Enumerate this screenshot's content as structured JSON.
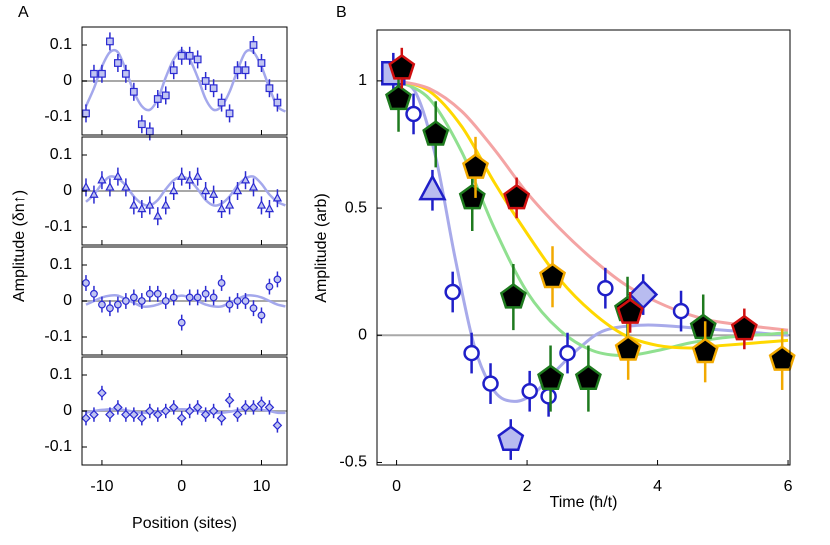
{
  "chart_data": [
    {
      "type": "scatter",
      "panel_label": "A",
      "y_label": "Amplitude (δn↑)",
      "x": [
        -12,
        -11,
        -10,
        -9,
        -8,
        -7,
        -6,
        -5,
        -4,
        -3,
        -2,
        -1,
        0,
        1,
        2,
        3,
        4,
        5,
        6,
        7,
        8,
        9,
        10,
        11,
        12
      ],
      "values": [
        -0.09,
        0.02,
        0.02,
        0.11,
        0.05,
        0.02,
        -0.03,
        -0.12,
        -0.14,
        -0.05,
        -0.04,
        0.03,
        0.07,
        0.07,
        0.06,
        0.0,
        -0.02,
        -0.06,
        -0.09,
        0.03,
        0.03,
        0.1,
        0.05,
        -0.02,
        -0.06
      ],
      "error": 0.025,
      "marker": "square",
      "color": "#2b2bd1",
      "fill": "#c0c4f2",
      "fit_color": "#a4a8ec",
      "fit_x": [
        -12,
        -11,
        -10,
        -9,
        -8,
        -7,
        -6,
        -5,
        -4,
        -3,
        -2,
        -1,
        0,
        1,
        2,
        3,
        4,
        5,
        6,
        7,
        8,
        9,
        10,
        11,
        12,
        13
      ],
      "fit_values": [
        -0.07,
        -0.02,
        0.04,
        0.08,
        0.08,
        0.03,
        -0.03,
        -0.07,
        -0.08,
        -0.05,
        0.01,
        0.06,
        0.085,
        0.06,
        0.01,
        -0.05,
        -0.08,
        -0.07,
        -0.03,
        0.03,
        0.08,
        0.08,
        0.04,
        -0.02,
        -0.07,
        -0.085
      ],
      "xlim": [
        -12.5,
        13.2
      ],
      "ylim": [
        -0.15,
        0.15
      ],
      "yticks": [
        0.1,
        0,
        -0.1
      ],
      "zero_line": true
    },
    {
      "type": "scatter",
      "x": [
        -12,
        -11,
        -10,
        -9,
        -8,
        -7,
        -6,
        -5,
        -4,
        -3,
        -2,
        -1,
        0,
        1,
        2,
        3,
        4,
        5,
        6,
        7,
        8,
        9,
        10,
        11,
        12
      ],
      "values": [
        0.01,
        -0.01,
        0.03,
        0.01,
        0.04,
        0.01,
        -0.04,
        -0.05,
        -0.04,
        -0.07,
        -0.04,
        0.0,
        0.04,
        0.03,
        0.04,
        0.0,
        -0.01,
        -0.05,
        -0.04,
        0.0,
        0.03,
        0.01,
        -0.04,
        -0.05,
        -0.02
      ],
      "error": 0.025,
      "marker": "triangle",
      "color": "#2b2bd1",
      "fill": "#c0c4f2",
      "fit_color": "#a4a8ec",
      "fit_x": [
        -12,
        -11,
        -10,
        -9,
        -8,
        -7,
        -6,
        -5,
        -4,
        -3,
        -2,
        -1,
        0,
        1,
        2,
        3,
        4,
        5,
        6,
        7,
        8,
        9,
        10,
        11,
        12,
        13
      ],
      "fit_values": [
        -0.03,
        -0.01,
        0.02,
        0.04,
        0.035,
        0.015,
        -0.015,
        -0.035,
        -0.04,
        -0.025,
        0.005,
        0.03,
        0.04,
        0.03,
        0.005,
        -0.025,
        -0.04,
        -0.035,
        -0.015,
        0.015,
        0.035,
        0.04,
        0.02,
        -0.01,
        -0.03,
        -0.04
      ],
      "xlim": [
        -12.5,
        13.2
      ],
      "ylim": [
        -0.15,
        0.15
      ],
      "yticks": [
        0.1,
        0,
        -0.1
      ],
      "zero_line": true
    },
    {
      "type": "scatter",
      "x": [
        -12,
        -11,
        -10,
        -9,
        -8,
        -7,
        -6,
        -5,
        -4,
        -3,
        -2,
        -1,
        0,
        1,
        2,
        3,
        4,
        5,
        6,
        7,
        8,
        9,
        10,
        11,
        12
      ],
      "values": [
        0.05,
        0.02,
        -0.01,
        -0.02,
        -0.01,
        0.0,
        0.01,
        0.0,
        0.02,
        0.02,
        0.0,
        0.01,
        -0.06,
        0.01,
        0.01,
        0.02,
        0.01,
        0.05,
        -0.01,
        0.0,
        0.0,
        -0.02,
        -0.04,
        0.04,
        0.06
      ],
      "error": 0.022,
      "marker": "circle",
      "color": "#2b2bd1",
      "fill": "#c0c4f2",
      "fit_color": "#a4a8ec",
      "fit_x": [
        -12,
        -11,
        -10,
        -9,
        -8,
        -7,
        -6,
        -5,
        -4,
        -3,
        -2,
        -1,
        0,
        1,
        2,
        3,
        4,
        5,
        6,
        7,
        8,
        9,
        10,
        11,
        12,
        13
      ],
      "fit_values": [
        -0.01,
        0,
        0.01,
        0.015,
        0.015,
        0.005,
        -0.005,
        -0.015,
        -0.015,
        -0.01,
        0,
        0.01,
        0.015,
        0.01,
        0,
        -0.01,
        -0.015,
        -0.015,
        -0.005,
        0.005,
        0.015,
        0.015,
        0.01,
        0,
        -0.01,
        -0.015
      ],
      "xlim": [
        -12.5,
        13.2
      ],
      "ylim": [
        -0.15,
        0.15
      ],
      "yticks": [
        0.1,
        0,
        -0.1
      ],
      "zero_line": true
    },
    {
      "type": "scatter",
      "x_label": "Position (sites)",
      "x": [
        -12,
        -11,
        -10,
        -9,
        -8,
        -7,
        -6,
        -5,
        -4,
        -3,
        -2,
        -1,
        0,
        1,
        2,
        3,
        4,
        5,
        6,
        7,
        8,
        9,
        10,
        11,
        12
      ],
      "values": [
        -0.02,
        -0.01,
        0.05,
        -0.01,
        0.01,
        -0.01,
        -0.01,
        -0.02,
        0.0,
        -0.01,
        0.0,
        0.01,
        -0.02,
        0.0,
        0.01,
        -0.01,
        0.0,
        -0.02,
        0.03,
        -0.01,
        0.01,
        0.01,
        0.02,
        0.01,
        -0.04
      ],
      "error": 0.02,
      "marker": "diamond",
      "color": "#2b2bd1",
      "fill": "#c0c4f2",
      "fit_color": "#a4a8ec",
      "fit_x": [
        -12,
        -11,
        -10,
        -9,
        -8,
        -7,
        -6,
        -5,
        -4,
        -3,
        -2,
        -1,
        0,
        1,
        2,
        3,
        4,
        5,
        6,
        7,
        8,
        9,
        10,
        11,
        12,
        13
      ],
      "fit_values": [
        -0.005,
        0,
        0.003,
        0.005,
        0.005,
        0.002,
        -0.002,
        -0.005,
        -0.005,
        -0.003,
        0,
        0.004,
        0.005,
        0.004,
        0,
        -0.003,
        -0.005,
        -0.005,
        -0.002,
        0.002,
        0.005,
        0.005,
        0.003,
        0,
        -0.005,
        -0.005
      ],
      "xlim": [
        -12.5,
        13.2
      ],
      "ylim": [
        -0.15,
        0.15
      ],
      "yticks": [
        0.1,
        0,
        -0.1
      ],
      "xticks": [
        -10,
        0,
        10
      ],
      "zero_line": true
    },
    {
      "type": "scatter",
      "panel_label": "B",
      "x_label": "Time (ħ/t)",
      "y_label": "Amplitude (arb)",
      "xlim": [
        -0.3,
        6.03
      ],
      "ylim": [
        -0.51,
        1.2
      ],
      "xticks": [
        0,
        2,
        4,
        6
      ],
      "yticks": [
        -0.5,
        0,
        0.5,
        1
      ],
      "zero_line": true,
      "series": [
        {
          "color": "#1f1fc8",
          "fill": "#ffffff",
          "highlight_fill": "#b8bcf0",
          "fit_color": "#a8aaea",
          "error": 0.08,
          "x": [
            -0.05,
            0.26,
            0.55,
            0.86,
            1.15,
            1.44,
            1.75,
            2.04,
            2.33,
            2.62,
            3.2,
            3.78,
            4.36
          ],
          "values": [
            1.03,
            0.87,
            0.57,
            0.17,
            -0.07,
            -0.19,
            -0.41,
            -0.22,
            -0.24,
            -0.07,
            0.185,
            0.16,
            0.095
          ],
          "markers": [
            "square",
            "circle",
            "triangle",
            "circle",
            "circle",
            "circle",
            "pentagon",
            "circle",
            "circle",
            "circle",
            "circle",
            "diamond",
            "circle"
          ],
          "fit_x": [
            0,
            0.3,
            0.6,
            0.9,
            1.2,
            1.5,
            1.8,
            2.1,
            2.4,
            2.8,
            3.2,
            3.8,
            4.5,
            6
          ],
          "fit_values": [
            1.0,
            0.95,
            0.7,
            0.3,
            -0.05,
            -0.22,
            -0.26,
            -0.23,
            -0.15,
            -0.05,
            0.02,
            0.04,
            0.03,
            0.0
          ]
        },
        {
          "color": "#1e7a1e",
          "fill": "#3dbb47",
          "fit_color": "#90e090",
          "error": 0.13,
          "x": [
            0.03,
            0.6,
            1.16,
            1.79,
            2.36,
            2.94,
            3.54,
            4.7
          ],
          "values": [
            0.93,
            0.79,
            0.54,
            0.15,
            -0.17,
            -0.17,
            0.1,
            0.03
          ],
          "fit_x": [
            0,
            0.5,
            1,
            1.5,
            2,
            2.5,
            3,
            3.5,
            4,
            4.5,
            5,
            6
          ],
          "fit_values": [
            1.0,
            0.93,
            0.72,
            0.42,
            0.17,
            0.02,
            -0.06,
            -0.08,
            -0.06,
            -0.03,
            -0.01,
            0.01
          ]
        },
        {
          "color": "#f2a900",
          "fill": "#ffc20e",
          "fit_color": "#ffd800",
          "error": 0.12,
          "x": [
            1.21,
            2.39,
            3.55,
            4.73,
            5.91
          ],
          "values": [
            0.66,
            0.23,
            -0.055,
            -0.065,
            -0.095
          ],
          "fit_x": [
            0,
            0.5,
            1,
            1.5,
            2,
            2.5,
            3,
            3.5,
            4,
            4.5,
            5,
            6
          ],
          "fit_values": [
            1.0,
            0.96,
            0.82,
            0.6,
            0.4,
            0.22,
            0.09,
            0.0,
            -0.04,
            -0.05,
            -0.04,
            -0.02
          ]
        },
        {
          "color": "#d01010",
          "fill": "#f08a8a",
          "fit_color": "#f4a4a4",
          "error": 0.08,
          "x": [
            0.08,
            1.84,
            3.58,
            5.33
          ],
          "values": [
            1.05,
            0.54,
            0.09,
            0.025
          ],
          "fit_x": [
            0,
            0.5,
            1,
            1.5,
            2,
            2.5,
            3,
            3.5,
            4,
            4.5,
            5,
            6
          ],
          "fit_values": [
            1.0,
            0.97,
            0.88,
            0.73,
            0.56,
            0.42,
            0.3,
            0.2,
            0.13,
            0.08,
            0.05,
            0.02
          ]
        }
      ]
    }
  ]
}
